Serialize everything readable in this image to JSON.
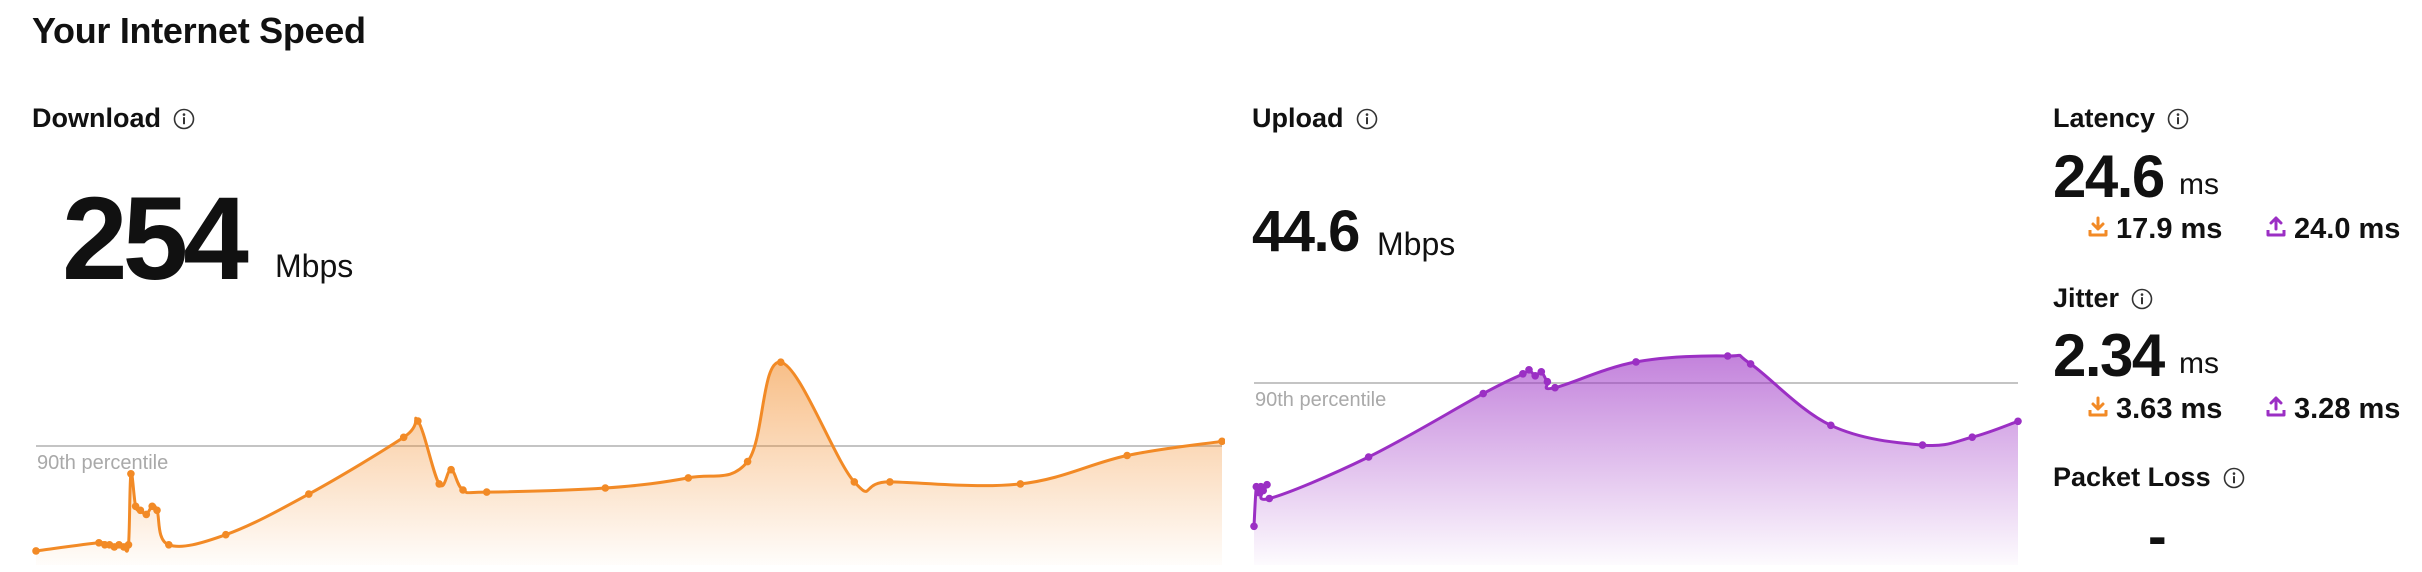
{
  "page_title": "Your Internet Speed",
  "download": {
    "label": "Download",
    "value": "254",
    "unit": "Mbps"
  },
  "upload": {
    "label": "Upload",
    "value": "44.6",
    "unit": "Mbps"
  },
  "latency": {
    "label": "Latency",
    "value": "24.6",
    "unit": "ms",
    "down": "17.9 ms",
    "up": "24.0 ms"
  },
  "jitter": {
    "label": "Jitter",
    "value": "2.34",
    "unit": "ms",
    "down": "3.63 ms",
    "up": "3.28 ms"
  },
  "packet_loss": {
    "label": "Packet Loss",
    "value": "-"
  },
  "colors": {
    "download": "#f28a26",
    "upload": "#9b2fc4",
    "percentile_line": "#c4c4c4"
  },
  "chart_data": [
    {
      "type": "area",
      "name_ref": "download",
      "percentile_label": "90th percentile",
      "percentile_level": 0.58,
      "points": [
        [
          0.0,
          0.02
        ],
        [
          0.053,
          0.06
        ],
        [
          0.058,
          0.05
        ],
        [
          0.062,
          0.05
        ],
        [
          0.066,
          0.04
        ],
        [
          0.07,
          0.05
        ],
        [
          0.074,
          0.04
        ],
        [
          0.078,
          0.05
        ],
        [
          0.08,
          0.4
        ],
        [
          0.084,
          0.24
        ],
        [
          0.088,
          0.22
        ],
        [
          0.093,
          0.2
        ],
        [
          0.098,
          0.24
        ],
        [
          0.102,
          0.22
        ],
        [
          0.112,
          0.05
        ],
        [
          0.16,
          0.1
        ],
        [
          0.23,
          0.3
        ],
        [
          0.31,
          0.58
        ],
        [
          0.322,
          0.66
        ],
        [
          0.34,
          0.35
        ],
        [
          0.35,
          0.42
        ],
        [
          0.36,
          0.32
        ],
        [
          0.38,
          0.31
        ],
        [
          0.48,
          0.33
        ],
        [
          0.55,
          0.38
        ],
        [
          0.6,
          0.46
        ],
        [
          0.628,
          0.95
        ],
        [
          0.69,
          0.36
        ],
        [
          0.72,
          0.36
        ],
        [
          0.83,
          0.35
        ],
        [
          0.92,
          0.49
        ],
        [
          1.0,
          0.56
        ]
      ]
    },
    {
      "type": "area",
      "name_ref": "upload",
      "percentile_label": "90th percentile",
      "percentile_level": 0.88,
      "points": [
        [
          0.0,
          0.13
        ],
        [
          0.003,
          0.33
        ],
        [
          0.006,
          0.3
        ],
        [
          0.009,
          0.33
        ],
        [
          0.012,
          0.31
        ],
        [
          0.017,
          0.34
        ],
        [
          0.02,
          0.27
        ],
        [
          0.15,
          0.48
        ],
        [
          0.3,
          0.8
        ],
        [
          0.352,
          0.9
        ],
        [
          0.36,
          0.92
        ],
        [
          0.368,
          0.89
        ],
        [
          0.376,
          0.91
        ],
        [
          0.384,
          0.86
        ],
        [
          0.394,
          0.83
        ],
        [
          0.5,
          0.96
        ],
        [
          0.62,
          0.99
        ],
        [
          0.65,
          0.95
        ],
        [
          0.755,
          0.64
        ],
        [
          0.875,
          0.54
        ],
        [
          0.94,
          0.58
        ],
        [
          1.0,
          0.66
        ]
      ]
    }
  ]
}
